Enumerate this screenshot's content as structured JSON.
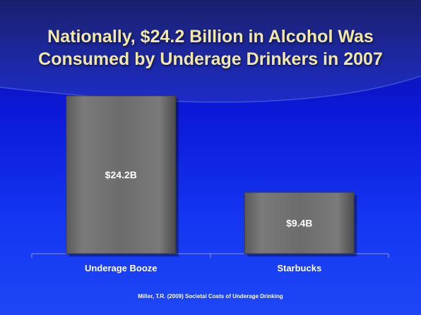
{
  "slide": {
    "title_line1": "Nationally, $24.2 Billion in Alcohol Was",
    "title_line2": "Consumed by Underage Drinkers in 2007",
    "source": "Miller, T.R. (2009) Societal Costs of Underage Drinking"
  },
  "colors": {
    "title": "#f1e8a6",
    "bar": "#6e6e6e",
    "background": "#1436f2"
  },
  "chart_data": {
    "type": "bar",
    "categories": [
      "Underage Booze",
      "Starbucks"
    ],
    "values": [
      24.2,
      9.4
    ],
    "value_labels": [
      "$24.2B",
      "$9.4B"
    ],
    "ylim": [
      0,
      27
    ],
    "grid": false,
    "legend": "none"
  }
}
